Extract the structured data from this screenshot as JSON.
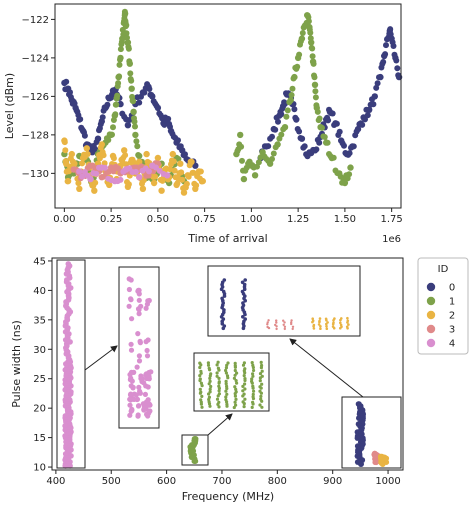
{
  "colors": {
    "0": "#3a3d7c",
    "1": "#7ea24a",
    "2": "#e9b443",
    "3": "#e08a8a",
    "4": "#d98fcf"
  },
  "chart_data": [
    {
      "type": "scatter",
      "xlabel": "Time of arrival",
      "ylabel": "Level (dBm)",
      "x_offset_label": "1e6",
      "xlim": [
        -0.05,
        1.8
      ],
      "ylim": [
        -131.8,
        -121.2
      ],
      "xticks": [
        "0.00",
        "0.25",
        "0.50",
        "0.75",
        "1.00",
        "1.25",
        "1.50",
        "1.75"
      ],
      "xtick_values": [
        0.0,
        0.25,
        0.5,
        0.75,
        1.0,
        1.25,
        1.5,
        1.75
      ],
      "yticks": [
        "−122",
        "−124",
        "−126",
        "−128",
        "−130"
      ],
      "ytick_values": [
        -122,
        -124,
        -126,
        -128,
        -130
      ],
      "series": [
        {
          "id": "0",
          "points": [
            [
              0.0,
              -125.3
            ],
            [
              0.02,
              -125.6
            ],
            [
              0.04,
              -126.2
            ],
            [
              0.06,
              -126.6
            ],
            [
              0.08,
              -127.2
            ],
            [
              0.1,
              -127.8
            ],
            [
              0.12,
              -128.5
            ],
            [
              0.15,
              -128.9
            ],
            [
              0.18,
              -128.2
            ],
            [
              0.2,
              -127.3
            ],
            [
              0.22,
              -126.6
            ],
            [
              0.24,
              -126.1
            ],
            [
              0.26,
              -125.7
            ],
            [
              0.28,
              -125.9
            ],
            [
              0.3,
              -126.4
            ],
            [
              0.34,
              -127.5
            ],
            [
              0.38,
              -126.4
            ],
            [
              0.42,
              -125.8
            ],
            [
              0.45,
              -125.5
            ],
            [
              0.47,
              -126.0
            ],
            [
              0.5,
              -126.6
            ],
            [
              0.53,
              -127.4
            ],
            [
              0.55,
              -127.2
            ],
            [
              0.57,
              -127.8
            ],
            [
              0.6,
              -128.4
            ],
            [
              0.63,
              -128.8
            ],
            [
              0.66,
              -129.3
            ],
            [
              0.7,
              -129.6
            ],
            [
              1.05,
              -129.2
            ],
            [
              1.08,
              -128.6
            ],
            [
              1.12,
              -127.7
            ],
            [
              1.15,
              -127.0
            ],
            [
              1.17,
              -126.5
            ],
            [
              1.19,
              -125.9
            ],
            [
              1.22,
              -126.4
            ],
            [
              1.24,
              -127.2
            ],
            [
              1.27,
              -128.2
            ],
            [
              1.3,
              -129.1
            ],
            [
              1.34,
              -128.8
            ],
            [
              1.37,
              -128.1
            ],
            [
              1.4,
              -127.2
            ],
            [
              1.42,
              -126.8
            ],
            [
              1.45,
              -127.4
            ],
            [
              1.48,
              -128.3
            ],
            [
              1.51,
              -129.0
            ],
            [
              1.54,
              -128.6
            ],
            [
              1.57,
              -127.7
            ],
            [
              1.6,
              -127.1
            ],
            [
              1.63,
              -126.7
            ],
            [
              1.66,
              -126.0
            ],
            [
              1.69,
              -125.0
            ],
            [
              1.71,
              -123.9
            ],
            [
              1.73,
              -123.0
            ],
            [
              1.74,
              -122.6
            ],
            [
              1.75,
              -123.0
            ],
            [
              1.77,
              -124.0
            ],
            [
              1.79,
              -125.0
            ]
          ]
        },
        {
          "id": "1",
          "points": [
            [
              0.0,
              -129.0
            ],
            [
              0.02,
              -130.2
            ],
            [
              0.05,
              -130.0
            ],
            [
              0.08,
              -129.1
            ],
            [
              0.12,
              -129.3
            ],
            [
              0.15,
              -130.6
            ],
            [
              0.18,
              -129.0
            ],
            [
              0.22,
              -128.4
            ],
            [
              0.25,
              -128.0
            ],
            [
              0.27,
              -127.0
            ],
            [
              0.28,
              -126.1
            ],
            [
              0.29,
              -125.0
            ],
            [
              0.3,
              -124.0
            ],
            [
              0.31,
              -123.0
            ],
            [
              0.32,
              -122.1
            ],
            [
              0.325,
              -121.7
            ],
            [
              0.33,
              -122.3
            ],
            [
              0.34,
              -123.2
            ],
            [
              0.35,
              -124.3
            ],
            [
              0.36,
              -125.6
            ],
            [
              0.37,
              -126.8
            ],
            [
              0.38,
              -128.0
            ],
            [
              0.4,
              -129.1
            ],
            [
              0.43,
              -130.0
            ],
            [
              0.47,
              -130.3
            ],
            [
              0.52,
              -129.5
            ],
            [
              0.56,
              -130.5
            ],
            [
              0.6,
              -129.2
            ],
            [
              0.64,
              -130.4
            ],
            [
              0.92,
              -129.0
            ],
            [
              0.94,
              -128.0
            ],
            [
              0.96,
              -130.3
            ],
            [
              0.99,
              -129.4
            ],
            [
              1.02,
              -130.1
            ],
            [
              1.06,
              -128.9
            ],
            [
              1.1,
              -129.5
            ],
            [
              1.14,
              -128.5
            ],
            [
              1.18,
              -127.6
            ],
            [
              1.21,
              -126.2
            ],
            [
              1.23,
              -125.0
            ],
            [
              1.25,
              -124.0
            ],
            [
              1.27,
              -123.0
            ],
            [
              1.29,
              -122.3
            ],
            [
              1.3,
              -121.8
            ],
            [
              1.31,
              -122.4
            ],
            [
              1.32,
              -123.2
            ],
            [
              1.33,
              -124.2
            ],
            [
              1.34,
              -125.4
            ],
            [
              1.35,
              -126.6
            ],
            [
              1.37,
              -127.6
            ],
            [
              1.4,
              -128.4
            ],
            [
              1.43,
              -129.2
            ],
            [
              1.47,
              -130.0
            ],
            [
              1.5,
              -130.5
            ],
            [
              1.53,
              -129.7
            ]
          ]
        },
        {
          "id": "2",
          "points": [
            [
              0.0,
              -128.3
            ],
            [
              0.01,
              -129.5
            ],
            [
              0.02,
              -130.4
            ],
            [
              0.04,
              -129.0
            ],
            [
              0.06,
              -129.8
            ],
            [
              0.08,
              -130.8
            ],
            [
              0.1,
              -129.2
            ],
            [
              0.12,
              -128.7
            ],
            [
              0.14,
              -130.1
            ],
            [
              0.16,
              -130.9
            ],
            [
              0.18,
              -129.5
            ],
            [
              0.2,
              -128.5
            ],
            [
              0.22,
              -129.9
            ],
            [
              0.24,
              -130.6
            ],
            [
              0.26,
              -129.1
            ],
            [
              0.28,
              -130.3
            ],
            [
              0.3,
              -129.6
            ],
            [
              0.32,
              -128.8
            ],
            [
              0.34,
              -130.7
            ],
            [
              0.36,
              -129.3
            ],
            [
              0.38,
              -130.0
            ],
            [
              0.4,
              -129.4
            ],
            [
              0.42,
              -130.8
            ],
            [
              0.44,
              -129.0
            ],
            [
              0.46,
              -129.7
            ],
            [
              0.48,
              -130.5
            ],
            [
              0.5,
              -129.2
            ],
            [
              0.52,
              -130.9
            ],
            [
              0.54,
              -129.8
            ],
            [
              0.56,
              -130.2
            ],
            [
              0.58,
              -129.0
            ],
            [
              0.6,
              -130.6
            ],
            [
              0.62,
              -129.5
            ],
            [
              0.64,
              -131.0
            ],
            [
              0.66,
              -130.1
            ],
            [
              0.68,
              -129.4
            ],
            [
              0.7,
              -130.8
            ],
            [
              0.72,
              -129.9
            ],
            [
              0.74,
              -130.4
            ]
          ]
        },
        {
          "id": "3",
          "points": [
            [
              0.05,
              -129.8
            ],
            [
              0.1,
              -130.1
            ],
            [
              0.15,
              -129.6
            ],
            [
              0.2,
              -130.2
            ],
            [
              0.25,
              -129.7
            ],
            [
              0.3,
              -130.0
            ],
            [
              0.35,
              -129.9
            ],
            [
              0.4,
              -129.8
            ],
            [
              0.45,
              -130.1
            ],
            [
              0.5,
              -129.5
            ]
          ]
        },
        {
          "id": "4",
          "points": [
            [
              0.08,
              -129.9
            ],
            [
              0.14,
              -130.3
            ],
            [
              0.2,
              -129.7
            ],
            [
              0.27,
              -130.4
            ],
            [
              0.33,
              -129.8
            ],
            [
              0.4,
              -130.2
            ],
            [
              0.47,
              -129.6
            ],
            [
              0.55,
              -130.1
            ]
          ]
        }
      ]
    },
    {
      "type": "scatter",
      "xlabel": "Frequency (MHz)",
      "ylabel": "Pulse width (ns)",
      "xlim": [
        393,
        1027
      ],
      "ylim": [
        9.5,
        45.5
      ],
      "xticks": [
        "400",
        "500",
        "600",
        "700",
        "800",
        "900",
        "1000"
      ],
      "xtick_values": [
        400,
        500,
        600,
        700,
        800,
        900,
        1000
      ],
      "yticks": [
        "10",
        "15",
        "20",
        "25",
        "30",
        "35",
        "40",
        "45"
      ],
      "ytick_values": [
        10,
        15,
        20,
        25,
        30,
        35,
        40,
        45
      ],
      "legend": {
        "title": "ID",
        "entries": [
          "0",
          "1",
          "2",
          "3",
          "4"
        ],
        "placement": "outside-right"
      },
      "clusters": [
        {
          "id": "4",
          "x": 422,
          "y_min": 10.2,
          "y_max": 44.5
        },
        {
          "id": "1",
          "x": 648,
          "y_min": 11.0,
          "y_max": 14.8
        },
        {
          "id": "0",
          "x": 950,
          "y_min": 10.5,
          "y_max": 20.7
        },
        {
          "id": "3",
          "x": 980,
          "y_min": 10.8,
          "y_max": 12.3
        },
        {
          "id": "2",
          "x": 992,
          "y_min": 10.5,
          "y_max": 11.8
        }
      ]
    }
  ]
}
